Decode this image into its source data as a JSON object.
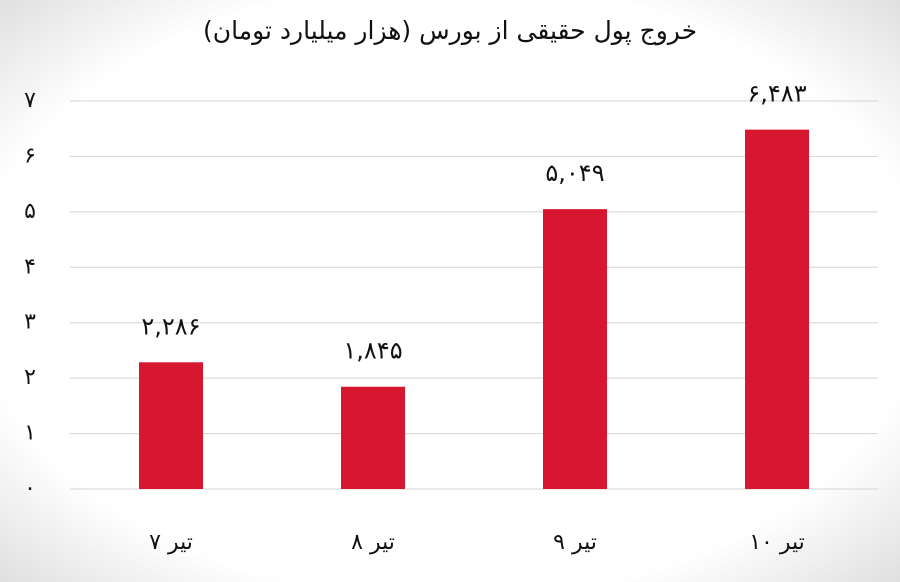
{
  "chart_data": {
    "type": "bar",
    "title": "خروج پول حقیقی از بورس (هزار میلیارد تومان)",
    "categories": [
      "۷ تیر",
      "۸ تیر",
      "۹ تیر",
      "۱۰ تیر"
    ],
    "values": [
      2.286,
      1.845,
      5.049,
      6.483
    ],
    "value_labels": [
      "۲,۲۸۶",
      "۱,۸۴۵",
      "۵,۰۴۹",
      "۶,۴۸۳"
    ],
    "color": "#d7172f",
    "ylim": [
      0,
      7
    ],
    "yticks": [
      {
        "value": 0,
        "label": "۰"
      },
      {
        "value": 1,
        "label": "۱"
      },
      {
        "value": 2,
        "label": "۲"
      },
      {
        "value": 3,
        "label": "۳"
      },
      {
        "value": 4,
        "label": "۴"
      },
      {
        "value": 5,
        "label": "۵"
      },
      {
        "value": 6,
        "label": "۶"
      },
      {
        "value": 7,
        "label": "۷"
      }
    ],
    "grid": true
  }
}
